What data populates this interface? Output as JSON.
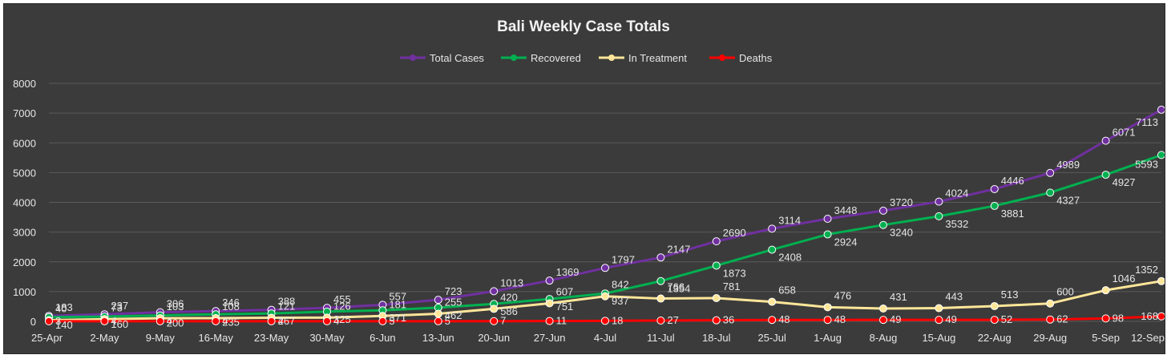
{
  "chart_data": {
    "type": "line",
    "title": "Bali Weekly Case Totals",
    "xlabel": "",
    "ylabel": "",
    "ylim": [
      0,
      8000
    ],
    "yticks": [
      0,
      1000,
      2000,
      3000,
      4000,
      5000,
      6000,
      7000,
      8000
    ],
    "grid": true,
    "legend_position": "top",
    "categories": [
      "25-Apr",
      "2-May",
      "9-May",
      "16-May",
      "23-May",
      "30-May",
      "6-Jun",
      "13-Jun",
      "20-Jun",
      "27-Jun",
      "4-Jul",
      "11-Jul",
      "18-Jul",
      "25-Jul",
      "1-Aug",
      "8-Aug",
      "15-Aug",
      "22-Aug",
      "29-Aug",
      "5-Sep",
      "12-Sep"
    ],
    "series": [
      {
        "name": "Total Cases",
        "color": "#7030a0",
        "values": [
          183,
          237,
          306,
          346,
          388,
          455,
          557,
          723,
          1013,
          1369,
          1797,
          2147,
          2690,
          3114,
          3448,
          3720,
          4024,
          4446,
          4989,
          6071,
          7113
        ]
      },
      {
        "name": "Recovered",
        "color": "#00b050",
        "values": [
          140,
          160,
          200,
          235,
          267,
          325,
          371,
          462,
          586,
          751,
          937,
          1354,
          1873,
          2408,
          2924,
          3240,
          3532,
          3881,
          4327,
          4927,
          5593
        ]
      },
      {
        "name": "In Treatment",
        "color": "#ffe699",
        "values": [
          40,
          73,
          103,
          108,
          121,
          126,
          181,
          255,
          420,
          607,
          842,
          766,
          781,
          658,
          476,
          431,
          443,
          513,
          600,
          1046,
          1352
        ]
      },
      {
        "name": "Deaths",
        "color": "#ff0000",
        "values": [
          3,
          4,
          4,
          4,
          4,
          4,
          5,
          5,
          7,
          11,
          18,
          27,
          36,
          48,
          48,
          49,
          49,
          52,
          62,
          98,
          168
        ]
      }
    ]
  }
}
